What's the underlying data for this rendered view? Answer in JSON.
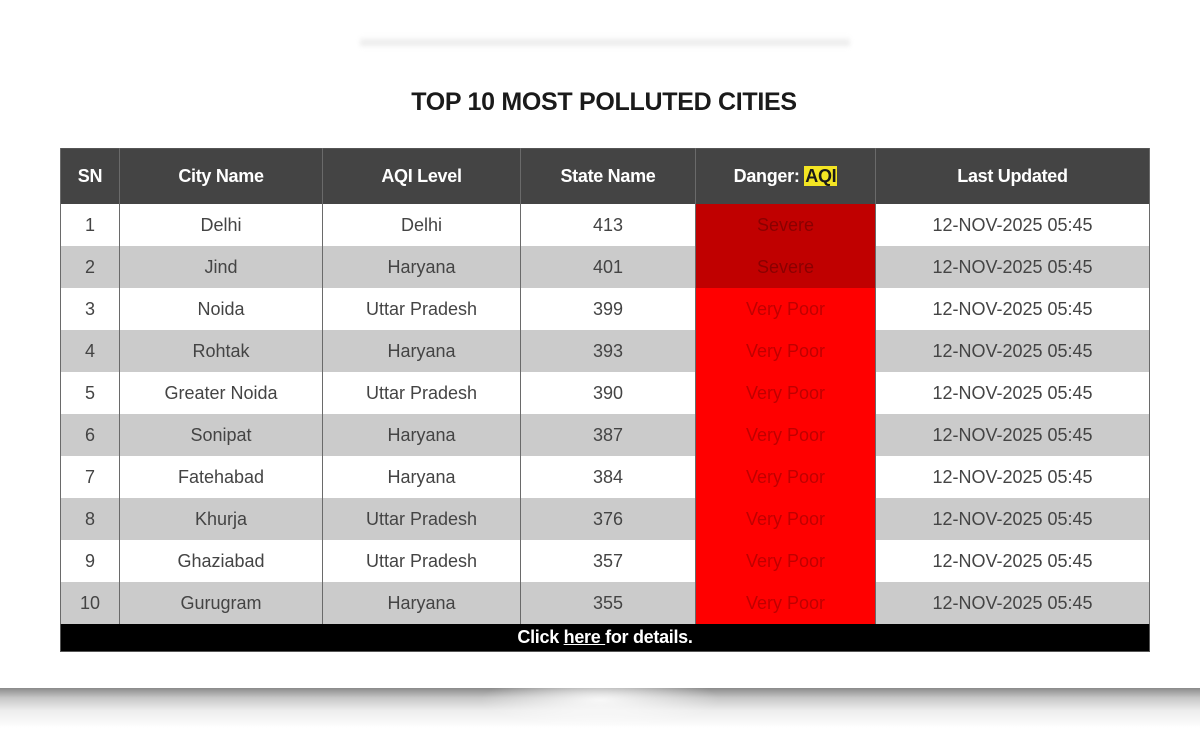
{
  "title": "TOP 10 MOST POLLUTED CITIES",
  "colors": {
    "header_bg": "#444444",
    "row_alt_bg": "#cbcbcb",
    "severe_bg": "#c00000",
    "very_poor_bg": "#ff0000",
    "highlight": "#f4e523",
    "footer_bg": "#000000"
  },
  "table": {
    "headers": {
      "sn": "SN",
      "city": "City Name",
      "aqi_level": "AQI Level",
      "state": "State Name",
      "danger_prefix": "Danger: ",
      "danger_highlight": "AQI",
      "updated": "Last Updated"
    },
    "rows": [
      {
        "sn": "1",
        "city": "Delhi",
        "aqi_level": "Delhi",
        "state": "413",
        "danger": "Severe",
        "danger_color": "#c00000",
        "danger_text_color": "#8a0000",
        "updated": "12-NOV-2025 05:45"
      },
      {
        "sn": "2",
        "city": "Jind",
        "aqi_level": "Haryana",
        "state": "401",
        "danger": "Severe",
        "danger_color": "#c00000",
        "danger_text_color": "#8a0000",
        "updated": "12-NOV-2025 05:45"
      },
      {
        "sn": "3",
        "city": "Noida",
        "aqi_level": "Uttar Pradesh",
        "state": "399",
        "danger": "Very Poor",
        "danger_color": "#ff0000",
        "danger_text_color": "#c00000",
        "updated": "12-NOV-2025 05:45"
      },
      {
        "sn": "4",
        "city": "Rohtak",
        "aqi_level": "Haryana",
        "state": "393",
        "danger": "Very Poor",
        "danger_color": "#ff0000",
        "danger_text_color": "#c00000",
        "updated": "12-NOV-2025 05:45"
      },
      {
        "sn": "5",
        "city": "Greater Noida",
        "aqi_level": "Uttar Pradesh",
        "state": "390",
        "danger": "Very Poor",
        "danger_color": "#ff0000",
        "danger_text_color": "#c00000",
        "updated": "12-NOV-2025 05:45"
      },
      {
        "sn": "6",
        "city": "Sonipat",
        "aqi_level": "Haryana",
        "state": "387",
        "danger": "Very Poor",
        "danger_color": "#ff0000",
        "danger_text_color": "#c00000",
        "updated": "12-NOV-2025 05:45"
      },
      {
        "sn": "7",
        "city": "Fatehabad",
        "aqi_level": "Haryana",
        "state": "384",
        "danger": "Very Poor",
        "danger_color": "#ff0000",
        "danger_text_color": "#c00000",
        "updated": "12-NOV-2025 05:45"
      },
      {
        "sn": "8",
        "city": "Khurja",
        "aqi_level": "Uttar Pradesh",
        "state": "376",
        "danger": "Very Poor",
        "danger_color": "#ff0000",
        "danger_text_color": "#c00000",
        "updated": "12-NOV-2025 05:45"
      },
      {
        "sn": "9",
        "city": "Ghaziabad",
        "aqi_level": "Uttar Pradesh",
        "state": "357",
        "danger": "Very Poor",
        "danger_color": "#ff0000",
        "danger_text_color": "#c00000",
        "updated": "12-NOV-2025 05:45"
      },
      {
        "sn": "10",
        "city": "Gurugram",
        "aqi_level": "Haryana",
        "state": "355",
        "danger": "Very Poor",
        "danger_color": "#ff0000",
        "danger_text_color": "#c00000",
        "updated": "12-NOV-2025 05:45"
      }
    ],
    "footer": {
      "prefix": "Click ",
      "link": "here ",
      "suffix": "for details."
    }
  }
}
